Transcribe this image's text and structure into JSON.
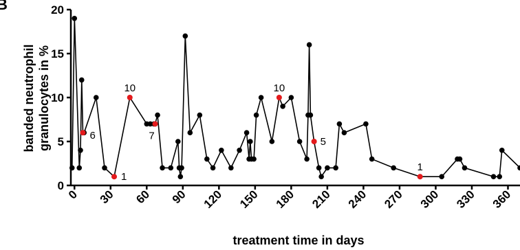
{
  "panel_letter": "B",
  "chart_data": {
    "type": "line",
    "title": "",
    "xlabel": "treatment time in days",
    "ylabel_lines": [
      "banded neutrophil",
      "granulocytes in %"
    ],
    "xlim": [
      -3,
      370
    ],
    "ylim": [
      0,
      20
    ],
    "xticks": [
      0,
      30,
      60,
      90,
      120,
      150,
      180,
      210,
      240,
      270,
      300,
      330,
      360
    ],
    "yticks": [
      0,
      5,
      10,
      15,
      20
    ],
    "grid": false,
    "legend": "none",
    "colors": {
      "line": "#000000",
      "point": "#000000",
      "highlight": "#e41a1c"
    },
    "series": [
      {
        "x": [
          -2,
          0,
          4,
          5,
          6,
          7,
          8,
          18,
          25,
          33,
          46,
          60,
          63,
          66,
          67,
          69,
          73,
          80,
          86,
          87,
          88,
          89,
          92,
          96,
          104,
          110,
          115,
          122,
          130,
          137,
          143,
          145,
          146,
          147,
          149,
          151,
          155,
          164,
          170,
          173,
          180,
          187,
          193,
          194,
          195,
          196,
          199,
          203,
          205,
          210,
          217,
          220,
          224,
          242,
          247,
          265,
          287,
          305,
          318,
          320,
          324,
          348,
          353,
          355,
          370
        ],
        "y": [
          2,
          19,
          2,
          4,
          12,
          6,
          6,
          10,
          2,
          1,
          10,
          7,
          7,
          7,
          7,
          8,
          2,
          2,
          5,
          2,
          1,
          2,
          17,
          6,
          8,
          3,
          2,
          4,
          2,
          4,
          6,
          3,
          5,
          3,
          3,
          8,
          10,
          5,
          10,
          9,
          10,
          5,
          3,
          8,
          16,
          8,
          5,
          2,
          1,
          2,
          2,
          7,
          6,
          7,
          3,
          2,
          1,
          1,
          3,
          3,
          2,
          1,
          1,
          4,
          2
        ]
      }
    ],
    "highlighted_points": [
      {
        "x": 7,
        "y": 6,
        "label": "6"
      },
      {
        "x": 33,
        "y": 1,
        "label": "1"
      },
      {
        "x": 46,
        "y": 10,
        "label": "10"
      },
      {
        "x": 67,
        "y": 7,
        "label": "7"
      },
      {
        "x": 170,
        "y": 10,
        "label": "10"
      },
      {
        "x": 199,
        "y": 5,
        "label": "5"
      },
      {
        "x": 287,
        "y": 1,
        "label": "1"
      }
    ]
  }
}
